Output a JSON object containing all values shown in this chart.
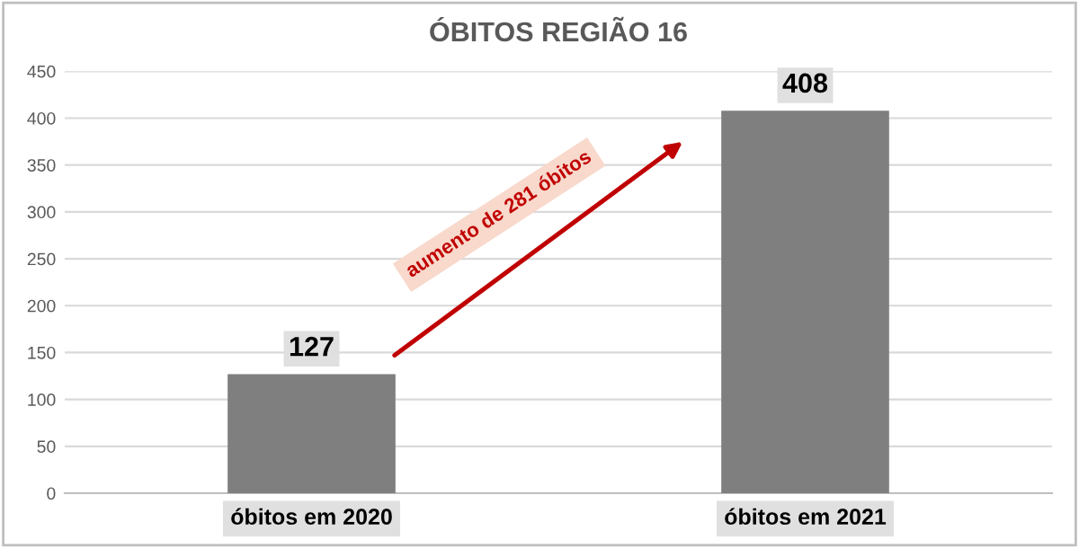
{
  "chart_data": {
    "type": "bar",
    "title": "ÓBITOS REGIÃO 16",
    "categories": [
      "óbitos em 2020",
      "óbitos em 2021"
    ],
    "values": [
      127,
      408
    ],
    "color": "#7f7f7f",
    "ylim": [
      0,
      450
    ],
    "yticks": [
      0,
      50,
      100,
      150,
      200,
      250,
      300,
      350,
      400,
      450
    ],
    "grid": "y",
    "data_labels": true,
    "annotations": [
      "aumento de 281 óbitos"
    ]
  }
}
